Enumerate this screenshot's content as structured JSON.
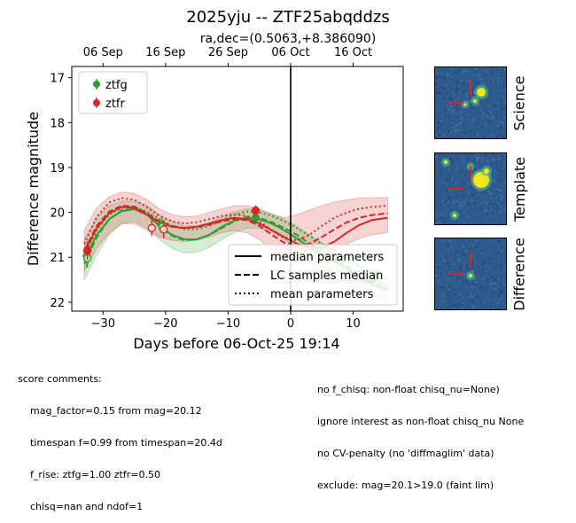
{
  "chart_data": {
    "type": "scatter",
    "title": "2025yju -- ZTF25abqddzs",
    "subtitle": "ra,dec=(0.5063,+8.386090)",
    "xlabel": "Days before 06-Oct-25 19:14",
    "ylabel": "Difference magnitude",
    "xlim": [
      -35,
      18
    ],
    "ylim": [
      22.2,
      16.75
    ],
    "y_inverted": true,
    "xticks": [
      -30,
      -20,
      -10,
      0,
      10
    ],
    "yticks": [
      17,
      18,
      19,
      20,
      21,
      22
    ],
    "top_axis_ticks": [
      {
        "label": "06 Sep",
        "x": -30
      },
      {
        "label": "16 Sep",
        "x": -20
      },
      {
        "label": "26 Sep",
        "x": -10
      },
      {
        "label": "06 Oct",
        "x": 0
      },
      {
        "label": "16 Oct",
        "x": 10
      }
    ],
    "reference_line_x": 0,
    "legend_placement": "top-left",
    "series": [
      {
        "name": "ztfg",
        "color": "#2ca02c",
        "points": [
          {
            "x": -32.6,
            "y": 20.98,
            "err": 0.25,
            "filled": true
          },
          {
            "x": -32.5,
            "y": 21.02,
            "err": 0.2,
            "filled": false
          },
          {
            "x": -20.6,
            "y": 20.28,
            "err": 0.15,
            "filled": true
          },
          {
            "x": -20.5,
            "y": 20.32,
            "err": 0.12,
            "filled": false
          },
          {
            "x": -5.6,
            "y": 20.12,
            "err": 0.08,
            "filled": true
          }
        ],
        "median": [
          [
            -33,
            21.05
          ],
          [
            -31,
            20.5
          ],
          [
            -29,
            20.15
          ],
          [
            -27,
            19.97
          ],
          [
            -25,
            19.93
          ],
          [
            -23,
            20.05
          ],
          [
            -21,
            20.3
          ],
          [
            -19,
            20.5
          ],
          [
            -17,
            20.6
          ],
          [
            -15,
            20.6
          ],
          [
            -13,
            20.5
          ],
          [
            -11,
            20.32
          ],
          [
            -9,
            20.18
          ],
          [
            -7,
            20.12
          ],
          [
            -5,
            20.15
          ],
          [
            -3,
            20.25
          ],
          [
            -1,
            20.4
          ],
          [
            1,
            20.58
          ],
          [
            3,
            20.78
          ],
          [
            5,
            20.95
          ],
          [
            7,
            21.1
          ],
          [
            9,
            21.25
          ],
          [
            11,
            21.45
          ],
          [
            13,
            21.6
          ],
          [
            15.5,
            21.75
          ]
        ],
        "lc_samples_median": [
          [
            -33,
            21.15
          ],
          [
            -31,
            20.55
          ],
          [
            -29,
            20.15
          ],
          [
            -27,
            19.95
          ],
          [
            -25,
            19.92
          ],
          [
            -23,
            20.05
          ],
          [
            -21,
            20.3
          ],
          [
            -19,
            20.52
          ],
          [
            -17,
            20.62
          ],
          [
            -15,
            20.6
          ],
          [
            -13,
            20.5
          ],
          [
            -11,
            20.35
          ],
          [
            -9,
            20.2
          ],
          [
            -7,
            20.1
          ],
          [
            -5,
            20.12
          ],
          [
            -3,
            20.22
          ],
          [
            -1,
            20.35
          ],
          [
            1,
            20.5
          ],
          [
            3,
            20.7
          ],
          [
            5,
            20.88
          ],
          [
            7,
            21.05
          ],
          [
            9,
            21.2
          ],
          [
            11,
            21.4
          ],
          [
            13,
            21.55
          ],
          [
            15.5,
            21.7
          ]
        ],
        "mean": [
          [
            -33,
            20.95
          ],
          [
            -31,
            20.4
          ],
          [
            -29,
            20.05
          ],
          [
            -27,
            19.9
          ],
          [
            -25,
            19.88
          ],
          [
            -23,
            19.98
          ],
          [
            -21,
            20.15
          ],
          [
            -19,
            20.3
          ],
          [
            -17,
            20.38
          ],
          [
            -15,
            20.38
          ],
          [
            -13,
            20.3
          ],
          [
            -11,
            20.18
          ],
          [
            -9,
            20.05
          ],
          [
            -7,
            19.98
          ],
          [
            -5,
            20.0
          ],
          [
            -3,
            20.08
          ],
          [
            -1,
            20.2
          ],
          [
            1,
            20.35
          ],
          [
            3,
            20.52
          ],
          [
            5,
            20.7
          ],
          [
            7,
            20.85
          ],
          [
            9,
            21.02
          ],
          [
            11,
            21.2
          ],
          [
            13,
            21.35
          ],
          [
            15.5,
            21.5
          ]
        ],
        "band_upper": [
          [
            -33,
            20.6
          ],
          [
            -31,
            20.1
          ],
          [
            -29,
            19.85
          ],
          [
            -27,
            19.75
          ],
          [
            -25,
            19.75
          ],
          [
            -23,
            19.85
          ],
          [
            -21,
            20.05
          ],
          [
            -19,
            20.2
          ],
          [
            -17,
            20.3
          ],
          [
            -15,
            20.3
          ],
          [
            -13,
            20.22
          ],
          [
            -11,
            20.1
          ],
          [
            -9,
            19.98
          ],
          [
            -7,
            19.92
          ],
          [
            -5,
            19.95
          ],
          [
            -3,
            20.02
          ],
          [
            -1,
            20.15
          ],
          [
            1,
            20.3
          ],
          [
            3,
            20.5
          ],
          [
            5,
            20.68
          ],
          [
            7,
            20.85
          ],
          [
            9,
            21.0
          ],
          [
            11,
            21.18
          ],
          [
            13,
            21.3
          ],
          [
            15.5,
            21.45
          ]
        ],
        "band_lower": [
          [
            -33,
            21.5
          ],
          [
            -31,
            20.95
          ],
          [
            -29,
            20.5
          ],
          [
            -27,
            20.25
          ],
          [
            -25,
            20.2
          ],
          [
            -23,
            20.35
          ],
          [
            -21,
            20.6
          ],
          [
            -19,
            20.8
          ],
          [
            -17,
            20.9
          ],
          [
            -15,
            20.88
          ],
          [
            -13,
            20.78
          ],
          [
            -11,
            20.6
          ],
          [
            -9,
            20.45
          ],
          [
            -7,
            20.35
          ],
          [
            -5,
            20.35
          ],
          [
            -3,
            20.45
          ],
          [
            -1,
            20.6
          ],
          [
            1,
            20.8
          ],
          [
            3,
            21.0
          ],
          [
            5,
            21.2
          ],
          [
            7,
            21.38
          ],
          [
            9,
            21.55
          ],
          [
            11,
            21.72
          ],
          [
            13,
            21.88
          ],
          [
            15.5,
            22.0
          ]
        ]
      },
      {
        "name": "ztfr",
        "color": "#d62728",
        "points": [
          {
            "x": -32.5,
            "y": 20.85,
            "err": 0.2,
            "filled": true
          },
          {
            "x": -22.2,
            "y": 20.35,
            "err": 0.18,
            "filled": false
          },
          {
            "x": -20.3,
            "y": 20.38,
            "err": 0.2,
            "filled": false
          },
          {
            "x": -5.6,
            "y": 19.96,
            "err": 0.12,
            "filled": true
          }
        ],
        "median": [
          [
            -33,
            20.9
          ],
          [
            -31,
            20.35
          ],
          [
            -29,
            20.02
          ],
          [
            -27,
            19.88
          ],
          [
            -25,
            19.9
          ],
          [
            -23,
            20.05
          ],
          [
            -21,
            20.22
          ],
          [
            -19,
            20.32
          ],
          [
            -17,
            20.35
          ],
          [
            -15,
            20.32
          ],
          [
            -13,
            20.25
          ],
          [
            -11,
            20.17
          ],
          [
            -9,
            20.12
          ],
          [
            -7,
            20.15
          ],
          [
            -5,
            20.25
          ],
          [
            -3,
            20.4
          ],
          [
            -1,
            20.55
          ],
          [
            1,
            20.7
          ],
          [
            3,
            20.78
          ],
          [
            5,
            20.78
          ],
          [
            7,
            20.65
          ],
          [
            9,
            20.45
          ],
          [
            11,
            20.28
          ],
          [
            13,
            20.17
          ],
          [
            15.5,
            20.12
          ]
        ],
        "lc_samples_median": [
          [
            -33,
            20.85
          ],
          [
            -31,
            20.3
          ],
          [
            -29,
            19.98
          ],
          [
            -27,
            19.85
          ],
          [
            -25,
            19.87
          ],
          [
            -23,
            20.02
          ],
          [
            -21,
            20.2
          ],
          [
            -19,
            20.3
          ],
          [
            -17,
            20.35
          ],
          [
            -15,
            20.33
          ],
          [
            -13,
            20.27
          ],
          [
            -11,
            20.2
          ],
          [
            -9,
            20.15
          ],
          [
            -7,
            20.17
          ],
          [
            -5,
            20.3
          ],
          [
            -3,
            20.5
          ],
          [
            -1,
            20.68
          ],
          [
            1,
            20.75
          ],
          [
            3,
            20.7
          ],
          [
            5,
            20.55
          ],
          [
            7,
            20.38
          ],
          [
            9,
            20.22
          ],
          [
            11,
            20.12
          ],
          [
            13,
            20.06
          ],
          [
            15.5,
            20.02
          ]
        ],
        "mean": [
          [
            -33,
            20.7
          ],
          [
            -31,
            20.1
          ],
          [
            -29,
            19.78
          ],
          [
            -27,
            19.68
          ],
          [
            -25,
            19.72
          ],
          [
            -23,
            19.88
          ],
          [
            -21,
            20.08
          ],
          [
            -19,
            20.2
          ],
          [
            -17,
            20.25
          ],
          [
            -15,
            20.22
          ],
          [
            -13,
            20.15
          ],
          [
            -11,
            20.08
          ],
          [
            -9,
            20.05
          ],
          [
            -7,
            20.08
          ],
          [
            -5,
            20.2
          ],
          [
            -3,
            20.4
          ],
          [
            -1,
            20.58
          ],
          [
            1,
            20.62
          ],
          [
            3,
            20.5
          ],
          [
            5,
            20.3
          ],
          [
            7,
            20.12
          ],
          [
            9,
            20.0
          ],
          [
            11,
            19.92
          ],
          [
            13,
            19.88
          ],
          [
            15.5,
            19.85
          ]
        ],
        "band_upper": [
          [
            -33,
            20.4
          ],
          [
            -31,
            19.9
          ],
          [
            -29,
            19.65
          ],
          [
            -27,
            19.55
          ],
          [
            -25,
            19.58
          ],
          [
            -23,
            19.72
          ],
          [
            -21,
            19.92
          ],
          [
            -19,
            20.05
          ],
          [
            -17,
            20.1
          ],
          [
            -15,
            20.08
          ],
          [
            -13,
            20.0
          ],
          [
            -11,
            19.92
          ],
          [
            -9,
            19.85
          ],
          [
            -7,
            19.85
          ],
          [
            -5,
            19.92
          ],
          [
            -3,
            20.05
          ],
          [
            -1,
            20.12
          ],
          [
            1,
            20.05
          ],
          [
            3,
            19.95
          ],
          [
            5,
            19.85
          ],
          [
            7,
            19.77
          ],
          [
            9,
            19.72
          ],
          [
            11,
            19.68
          ],
          [
            13,
            19.67
          ],
          [
            15.5,
            19.67
          ]
        ],
        "band_lower": [
          [
            -33,
            21.3
          ],
          [
            -31,
            20.8
          ],
          [
            -29,
            20.45
          ],
          [
            -27,
            20.25
          ],
          [
            -25,
            20.25
          ],
          [
            -23,
            20.4
          ],
          [
            -21,
            20.55
          ],
          [
            -19,
            20.62
          ],
          [
            -17,
            20.65
          ],
          [
            -15,
            20.62
          ],
          [
            -13,
            20.55
          ],
          [
            -11,
            20.45
          ],
          [
            -9,
            20.4
          ],
          [
            -7,
            20.45
          ],
          [
            -5,
            20.6
          ],
          [
            -3,
            20.85
          ],
          [
            -1,
            21.05
          ],
          [
            1,
            21.15
          ],
          [
            3,
            21.12
          ],
          [
            5,
            21.0
          ],
          [
            7,
            20.85
          ],
          [
            9,
            20.7
          ],
          [
            11,
            20.58
          ],
          [
            13,
            20.5
          ],
          [
            15.5,
            20.45
          ]
        ]
      }
    ],
    "line_style_legend": [
      {
        "label": "median parameters",
        "style": "solid"
      },
      {
        "label": "LC samples median",
        "style": "dashed"
      },
      {
        "label": "mean parameters",
        "style": "dotted"
      }
    ]
  },
  "thumbnails": [
    {
      "label": "Science",
      "marker_color": "#d62728"
    },
    {
      "label": "Template",
      "marker_color": "#d62728"
    },
    {
      "label": "Difference",
      "marker_color": "#d62728"
    }
  ],
  "comments": {
    "left": [
      "score comments:",
      "    mag_factor=0.15 from mag=20.12",
      "    timespan f=0.99 from timespan=20.4d",
      "    f_rise: ztfg=1.00 ztfr=0.50",
      "    chisq=nan and ndof=1"
    ],
    "right": [
      "no f_chisq: non-float chisq_nu=None)",
      "ignore interest as non-float chisq_nu None",
      "no CV-penalty (no 'diffmaglim' data)",
      "exclude: mag=20.1>19.0 (faint lim)"
    ]
  }
}
